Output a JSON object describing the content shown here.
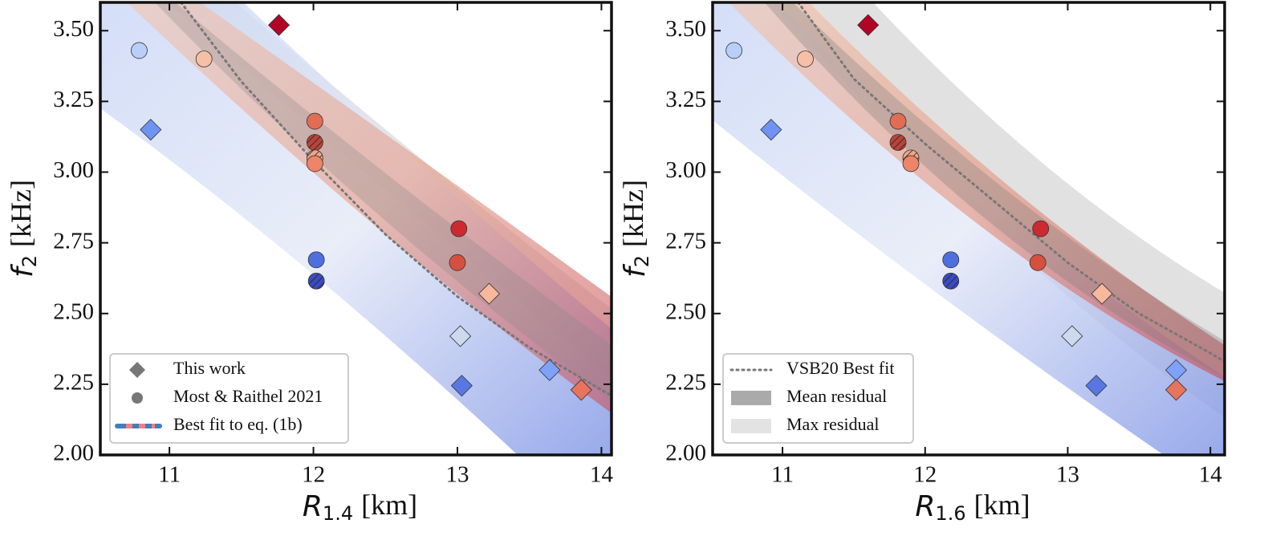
{
  "chart_data": [
    {
      "type": "scatter",
      "xlabel": {
        "symbol": "R",
        "subscript": "1.4",
        "unit": "[km]"
      },
      "ylabel": {
        "symbol": "f",
        "subscript": "2",
        "unit": "[kHz]"
      },
      "xlim": [
        10.52,
        14.07
      ],
      "ylim": [
        2.0,
        3.6
      ],
      "xticks": [
        11,
        12,
        13,
        14
      ],
      "yticks": [
        {
          "value": 2.0,
          "label": "2.00"
        },
        {
          "value": 2.25,
          "label": "2.25"
        },
        {
          "value": 2.5,
          "label": "2.50"
        },
        {
          "value": 2.75,
          "label": "2.75"
        },
        {
          "value": 3.0,
          "label": "3.00"
        },
        {
          "value": 3.25,
          "label": "3.25"
        },
        {
          "value": 3.5,
          "label": "3.50"
        }
      ],
      "series": [
        {
          "name": "This work",
          "marker": "diamond",
          "x": [
            11.76,
            10.87,
            13.22,
            13.02,
            13.03,
            13.64,
            13.86
          ],
          "y": [
            3.52,
            3.15,
            2.57,
            2.42,
            2.245,
            2.3,
            2.23
          ],
          "colors": [
            "#b40426",
            "#6f92f3",
            "#f7b89c",
            "#cdd9ec",
            "#5977e3",
            "#7ea1fa",
            "#e7745b"
          ],
          "hatch": [
            false,
            false,
            false,
            false,
            false,
            false,
            false
          ]
        },
        {
          "name": "Most & Raithel 2021",
          "marker": "circle",
          "x": [
            10.79,
            11.24,
            12.01,
            12.01,
            12.01,
            12.01,
            13.01,
            13.0,
            12.02,
            12.02
          ],
          "y": [
            3.43,
            3.4,
            3.18,
            3.105,
            3.05,
            3.03,
            2.8,
            2.68,
            2.69,
            2.615
          ],
          "colors": [
            "#b7cff9",
            "#f6bfa6",
            "#e36c55",
            "#b8443a",
            "#f2a488",
            "#ee8468",
            "#cc2a30",
            "#d6503f",
            "#4f6fdf",
            "#3b4cc0"
          ],
          "hatch": [
            false,
            false,
            false,
            true,
            true,
            false,
            false,
            false,
            false,
            true
          ]
        }
      ],
      "fit_line": {
        "x": [
          11.08,
          11.5,
          12,
          12.5,
          13,
          13.5,
          14,
          14.07
        ],
        "y": [
          3.6,
          3.32,
          3.04,
          2.78,
          2.56,
          2.38,
          2.23,
          2.21
        ],
        "color": "#777777"
      },
      "legend": [
        {
          "label": "This work",
          "marker": "diamond"
        },
        {
          "label": "Most & Raithel 2021",
          "marker": "circle"
        },
        {
          "label": "Best fit to eq. (1b)",
          "marker": "dashed-line"
        }
      ]
    },
    {
      "type": "scatter",
      "xlabel": {
        "symbol": "R",
        "subscript": "1.6",
        "unit": "[km]"
      },
      "ylabel": {
        "symbol": "f",
        "subscript": "2",
        "unit": "[kHz]"
      },
      "xlim": [
        10.51,
        14.1
      ],
      "ylim": [
        2.0,
        3.6
      ],
      "xticks": [
        11,
        12,
        13,
        14
      ],
      "yticks": [
        {
          "value": 2.0,
          "label": "2.00"
        },
        {
          "value": 2.25,
          "label": "2.25"
        },
        {
          "value": 2.5,
          "label": "2.50"
        },
        {
          "value": 2.75,
          "label": "2.75"
        },
        {
          "value": 3.0,
          "label": "3.00"
        },
        {
          "value": 3.25,
          "label": "3.25"
        },
        {
          "value": 3.5,
          "label": "3.50"
        }
      ],
      "series": [
        {
          "name": "This work",
          "marker": "diamond",
          "x": [
            11.6,
            10.92,
            13.24,
            13.03,
            13.2,
            13.76,
            13.76
          ],
          "y": [
            3.52,
            3.15,
            2.57,
            2.42,
            2.245,
            2.3,
            2.23
          ],
          "colors": [
            "#b40426",
            "#6f92f3",
            "#f7b89c",
            "#cdd9ec",
            "#5977e3",
            "#7ea1fa",
            "#e7745b"
          ],
          "hatch": [
            false,
            false,
            false,
            false,
            false,
            false,
            false
          ]
        },
        {
          "name": "Most & Raithel 2021",
          "marker": "circle",
          "x": [
            10.66,
            11.16,
            11.81,
            11.81,
            11.9,
            11.9,
            12.81,
            12.79,
            12.18,
            12.18
          ],
          "y": [
            3.43,
            3.4,
            3.18,
            3.105,
            3.05,
            3.03,
            2.8,
            2.68,
            2.69,
            2.615
          ],
          "colors": [
            "#b7cff9",
            "#f6bfa6",
            "#e36c55",
            "#b8443a",
            "#f2a488",
            "#ee8468",
            "#cc2a30",
            "#d6503f",
            "#4f6fdf",
            "#3b4cc0"
          ],
          "hatch": [
            false,
            false,
            false,
            true,
            true,
            false,
            false,
            false,
            false,
            true
          ]
        }
      ],
      "fit_line": {
        "x": [
          11.11,
          11.5,
          12,
          12.5,
          13,
          13.5,
          14,
          14.1
        ],
        "y": [
          3.6,
          3.33,
          3.1,
          2.89,
          2.68,
          2.5,
          2.36,
          2.33
        ],
        "color": "#777777"
      },
      "legend": [
        {
          "label": "VSB20 Best fit",
          "marker": "dotted-line"
        },
        {
          "label": "Mean residual",
          "marker": "dark-patch"
        },
        {
          "label": "Max residual",
          "marker": "light-patch"
        }
      ]
    }
  ]
}
